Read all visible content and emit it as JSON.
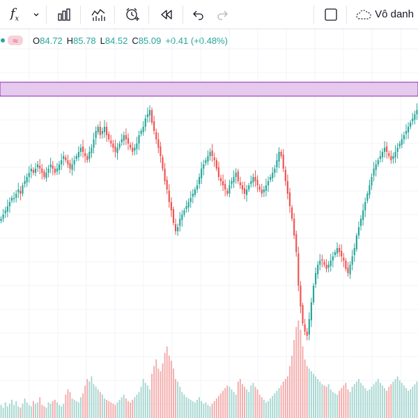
{
  "toolbar": {
    "indicator_label": "f",
    "indicator_sub": "x",
    "layout_name": "Vô danh"
  },
  "legend": {
    "pill_symbol": "≈",
    "open_label": "O",
    "open": "84.72",
    "high_label": "H",
    "high": "85.78",
    "low_label": "L",
    "low": "84.52",
    "close_label": "C",
    "close": "85.09",
    "change": "+0.41 (+0.48%)"
  },
  "colors": {
    "up": "#26a69a",
    "down": "#ef5350",
    "volume_up": "#a5d6d0",
    "volume_down": "#f4a9a8",
    "zone_fill": "#e5c9ee",
    "zone_border": "#8e24aa"
  },
  "chart_data": {
    "type": "candlestick",
    "has_price_zone": true,
    "grid": true,
    "closes": [
      68,
      69,
      70,
      71,
      72,
      73,
      73,
      74,
      75,
      74,
      76,
      77,
      78,
      79,
      80,
      79,
      80,
      81,
      80,
      79,
      78,
      79,
      80,
      81,
      80,
      79,
      80,
      81,
      82,
      83,
      82,
      81,
      80,
      81,
      82,
      83,
      84,
      85,
      84,
      83,
      82,
      84,
      85,
      87,
      89,
      90,
      88,
      89,
      90,
      88,
      87,
      86,
      85,
      84,
      85,
      86,
      87,
      88,
      87,
      86,
      85,
      84,
      85,
      86,
      88,
      89,
      90,
      92,
      93,
      94,
      91,
      89,
      87,
      85,
      83,
      80,
      77,
      75,
      72,
      70,
      67,
      65,
      66,
      68,
      69,
      70,
      71,
      72,
      73,
      74,
      75,
      76,
      78,
      80,
      81,
      82,
      83,
      84,
      83,
      82,
      80,
      78,
      77,
      76,
      75,
      74,
      76,
      77,
      78,
      79,
      77,
      76,
      75,
      74,
      75,
      76,
      77,
      78,
      77,
      76,
      75,
      74,
      75,
      76,
      77,
      78,
      79,
      80,
      82,
      84,
      83,
      80,
      77,
      74,
      71,
      68,
      64,
      60,
      52,
      47,
      43,
      41,
      40,
      44,
      48,
      52,
      55,
      57,
      58,
      58,
      57,
      56,
      57,
      58,
      59,
      60,
      61,
      60,
      59,
      58,
      56,
      55,
      57,
      59,
      61,
      64,
      66,
      68,
      70,
      72,
      74,
      76,
      78,
      80,
      81,
      82,
      83,
      84,
      85,
      84,
      83,
      82,
      83,
      84,
      85,
      86,
      87,
      88,
      89,
      90,
      91,
      92,
      93,
      94
    ],
    "volumes": [
      10,
      8,
      12,
      9,
      11,
      14,
      10,
      13,
      9,
      8,
      11,
      15,
      12,
      10,
      9,
      13,
      11,
      12,
      16,
      10,
      9,
      8,
      12,
      11,
      13,
      14,
      12,
      10,
      9,
      11,
      18,
      22,
      20,
      15,
      14,
      13,
      12,
      16,
      19,
      25,
      30,
      28,
      32,
      26,
      24,
      22,
      20,
      18,
      15,
      14,
      13,
      12,
      11,
      10,
      12,
      14,
      16,
      18,
      15,
      13,
      12,
      14,
      16,
      18,
      20,
      24,
      30,
      27,
      25,
      22,
      34,
      40,
      45,
      38,
      36,
      42,
      50,
      55,
      48,
      44,
      38,
      30,
      28,
      24,
      20,
      18,
      16,
      15,
      14,
      13,
      12,
      14,
      16,
      13,
      11,
      12,
      10,
      9,
      11,
      13,
      15,
      17,
      19,
      21,
      23,
      25,
      24,
      22,
      20,
      18,
      28,
      30,
      26,
      24,
      22,
      20,
      25,
      27,
      24,
      22,
      18,
      16,
      14,
      12,
      13,
      15,
      17,
      19,
      21,
      23,
      25,
      28,
      30,
      32,
      40,
      48,
      60,
      70,
      75,
      68,
      55,
      45,
      40,
      38,
      36,
      34,
      32,
      30,
      28,
      26,
      25,
      24,
      26,
      22,
      20,
      19,
      18,
      21,
      23,
      25,
      27,
      22,
      20,
      24,
      26,
      28,
      30,
      27,
      25,
      23,
      21,
      22,
      24,
      26,
      28,
      30,
      27,
      25,
      23,
      21,
      24,
      26,
      28,
      30,
      32,
      29,
      27,
      25,
      23,
      21,
      22,
      24,
      26,
      28
    ]
  }
}
